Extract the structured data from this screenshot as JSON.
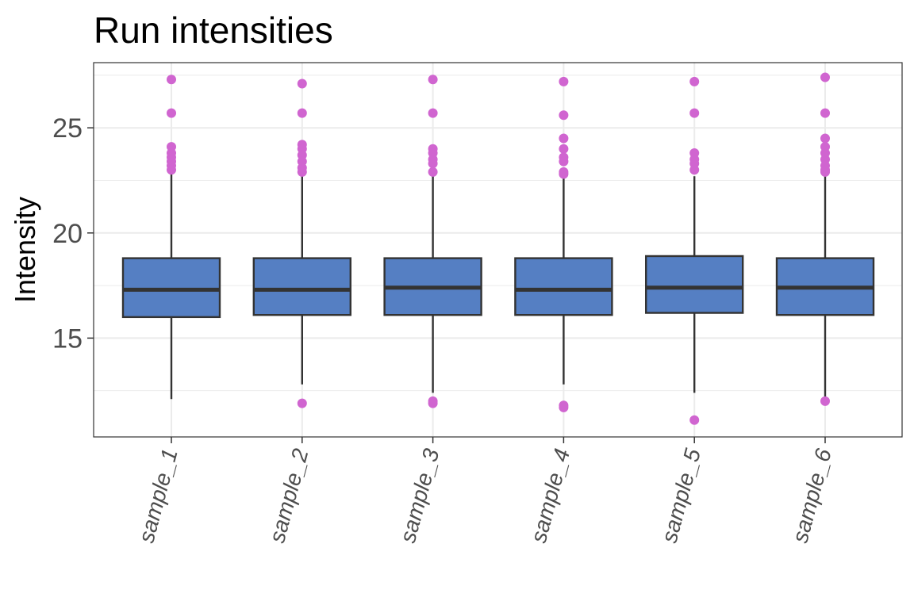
{
  "chart_data": {
    "type": "boxplot",
    "title": "Run intensities",
    "xlabel": "",
    "ylabel": "Intensity",
    "ylim": [
      10.3,
      28.1
    ],
    "y_ticks": [
      15,
      20,
      25
    ],
    "y_minor_ticks": [
      12.5,
      17.5,
      22.5,
      27.5
    ],
    "grid": true,
    "x_tick_rotation_deg": -75,
    "colors": {
      "box_fill": "#557fc3",
      "box_border": "#333333",
      "outlier": "#d065d0",
      "grid": "#ebebeb",
      "panel_border": "#333333"
    },
    "categories": [
      "sample_1",
      "sample_2",
      "sample_3",
      "sample_4",
      "sample_5",
      "sample_6"
    ],
    "boxes": [
      {
        "q1": 16.0,
        "median": 17.3,
        "q3": 18.8,
        "whisker_low": 12.1,
        "whisker_high": 22.9,
        "outliers": [
          27.3,
          25.7,
          24.1,
          23.8,
          23.6,
          23.4,
          23.2,
          23.0
        ]
      },
      {
        "q1": 16.1,
        "median": 17.3,
        "q3": 18.8,
        "whisker_low": 12.8,
        "whisker_high": 22.7,
        "outliers": [
          27.1,
          25.7,
          24.2,
          24.0,
          23.7,
          23.4,
          23.1,
          22.9,
          11.9
        ]
      },
      {
        "q1": 16.1,
        "median": 17.4,
        "q3": 18.8,
        "whisker_low": 12.4,
        "whisker_high": 22.7,
        "outliers": [
          27.3,
          25.7,
          24.0,
          23.8,
          23.5,
          23.3,
          22.9,
          12.0,
          11.9
        ]
      },
      {
        "q1": 16.1,
        "median": 17.3,
        "q3": 18.8,
        "whisker_low": 12.8,
        "whisker_high": 22.7,
        "outliers": [
          27.2,
          25.6,
          24.5,
          24.0,
          23.6,
          23.4,
          22.9,
          22.8,
          11.8,
          11.7
        ]
      },
      {
        "q1": 16.2,
        "median": 17.4,
        "q3": 18.9,
        "whisker_low": 12.4,
        "whisker_high": 22.7,
        "outliers": [
          27.2,
          25.7,
          23.8,
          23.5,
          23.3,
          23.0,
          11.1
        ]
      },
      {
        "q1": 16.1,
        "median": 17.4,
        "q3": 18.8,
        "whisker_low": 12.1,
        "whisker_high": 22.8,
        "outliers": [
          27.4,
          25.7,
          24.5,
          24.1,
          23.8,
          23.5,
          23.2,
          23.0,
          22.9,
          12.0
        ]
      }
    ]
  }
}
